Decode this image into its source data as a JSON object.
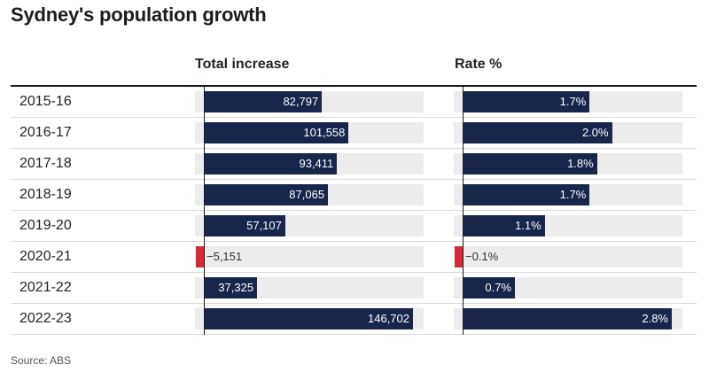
{
  "title": "Sydney's population growth",
  "source": "Source: ABS",
  "colors": {
    "positive": "#17264a",
    "negative": "#d62a3a",
    "track": "#ececec"
  },
  "chart_data": [
    {
      "type": "bar",
      "orientation": "horizontal",
      "title": "Total increase",
      "categories": [
        "2015-16",
        "2016-17",
        "2017-18",
        "2018-19",
        "2019-20",
        "2020-21",
        "2021-22",
        "2022-23"
      ],
      "values": [
        82797,
        101558,
        93411,
        87065,
        57107,
        -5151,
        37325,
        146702
      ],
      "labels": [
        "82,797",
        "101,558",
        "93,411",
        "87,065",
        "57,107",
        "−5,151",
        "37,325",
        "146,702"
      ],
      "xlim": [
        -5151,
        146702
      ]
    },
    {
      "type": "bar",
      "orientation": "horizontal",
      "title": "Rate %",
      "categories": [
        "2015-16",
        "2016-17",
        "2017-18",
        "2018-19",
        "2019-20",
        "2020-21",
        "2021-22",
        "2022-23"
      ],
      "values": [
        1.7,
        2.0,
        1.8,
        1.7,
        1.1,
        -0.1,
        0.7,
        2.8
      ],
      "labels": [
        "1.7%",
        "2.0%",
        "1.8%",
        "1.7%",
        "1.1%",
        "−0.1%",
        "0.7%",
        "2.8%"
      ],
      "xlim": [
        -0.1,
        2.8
      ]
    }
  ]
}
